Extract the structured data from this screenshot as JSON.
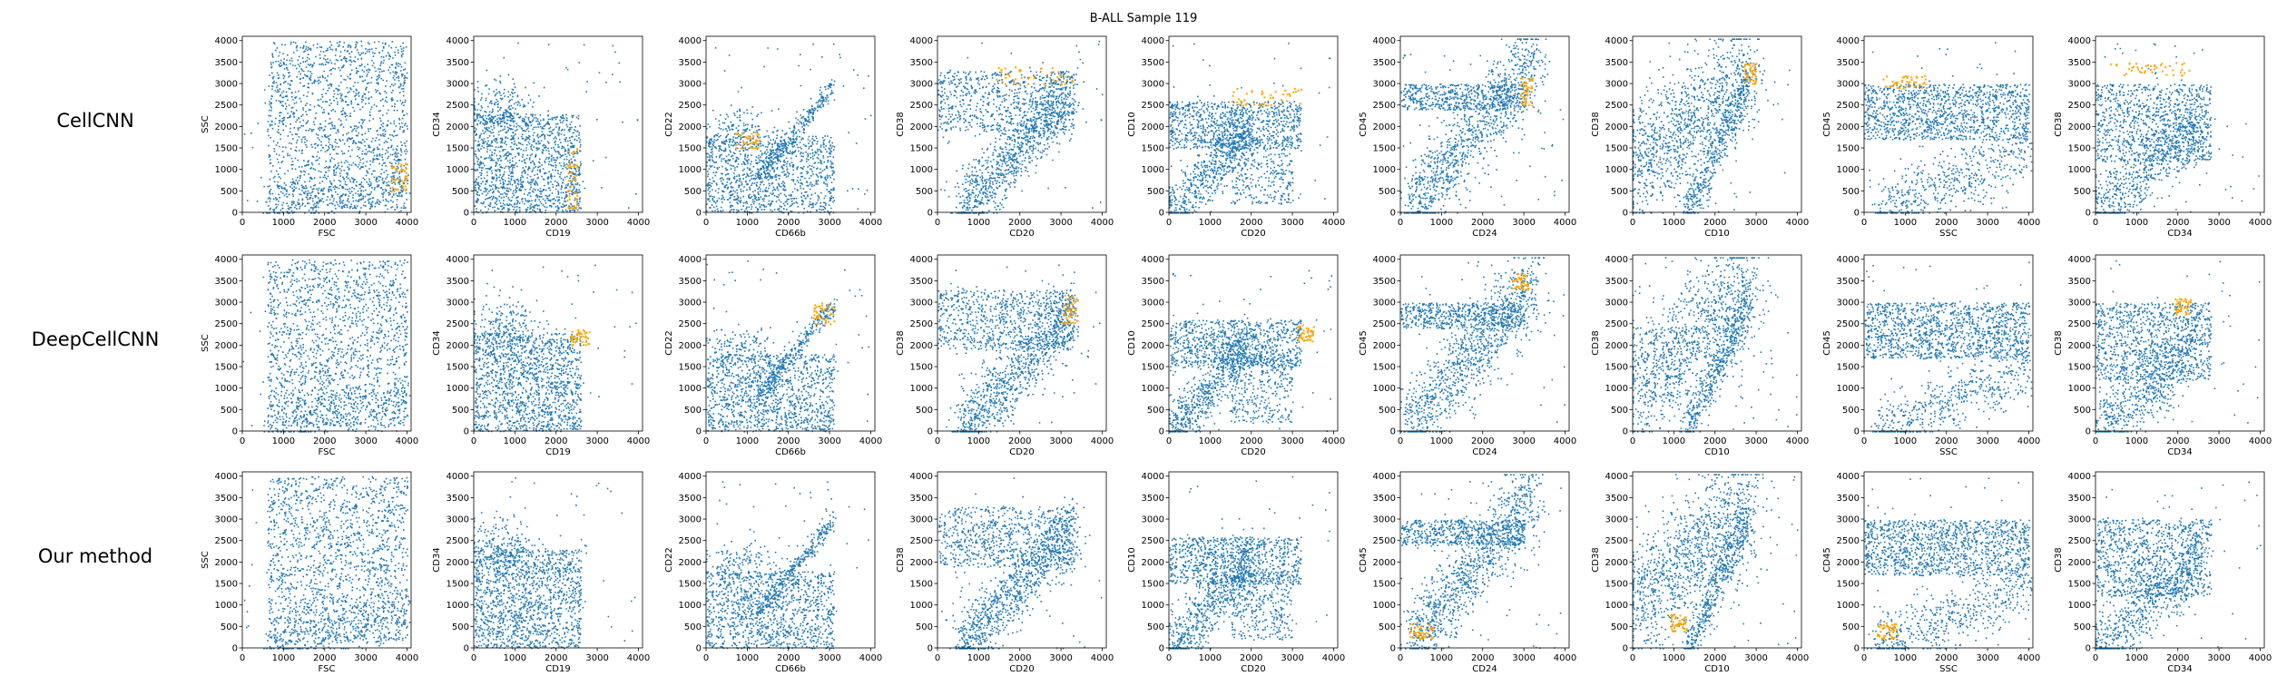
{
  "figure": {
    "title": "B-ALL Sample 119",
    "rows": [
      "CellCNN",
      "DeepCellCNN",
      "Our method"
    ]
  },
  "colors": {
    "population": "#1f77b4",
    "highlight": "#ffa500"
  },
  "chart_data": {
    "type": "scatter",
    "title": "B-ALL Sample 119",
    "grid": false,
    "rows": [
      "CellCNN",
      "DeepCellCNN",
      "Our method"
    ],
    "panels": [
      {
        "xlabel": "FSC",
        "ylabel": "SSC",
        "xlim": [
          0,
          4100
        ],
        "ylim": [
          0,
          4100
        ]
      },
      {
        "xlabel": "CD19",
        "ylabel": "CD34",
        "xlim": [
          0,
          4100
        ],
        "ylim": [
          0,
          4100
        ]
      },
      {
        "xlabel": "CD66b",
        "ylabel": "CD22",
        "xlim": [
          0,
          4100
        ],
        "ylim": [
          0,
          4100
        ]
      },
      {
        "xlabel": "CD20",
        "ylabel": "CD38",
        "xlim": [
          0,
          4100
        ],
        "ylim": [
          0,
          4100
        ]
      },
      {
        "xlabel": "CD20",
        "ylabel": "CD10",
        "xlim": [
          0,
          4100
        ],
        "ylim": [
          0,
          4100
        ]
      },
      {
        "xlabel": "CD24",
        "ylabel": "CD45",
        "xlim": [
          0,
          4100
        ],
        "ylim": [
          0,
          4100
        ]
      },
      {
        "xlabel": "CD10",
        "ylabel": "CD38",
        "xlim": [
          0,
          4100
        ],
        "ylim": [
          0,
          4100
        ]
      },
      {
        "xlabel": "SSC",
        "ylabel": "CD45",
        "xlim": [
          0,
          4100
        ],
        "ylim": [
          0,
          4100
        ]
      },
      {
        "xlabel": "CD34",
        "ylabel": "CD38",
        "xlim": [
          0,
          4100
        ],
        "ylim": [
          0,
          4100
        ]
      }
    ],
    "xticks": [
      0,
      1000,
      2000,
      3000,
      4000
    ],
    "yticks": [
      0,
      500,
      1000,
      1500,
      2000,
      2500,
      3000,
      3500,
      4000
    ],
    "highlight_clusters": [
      [
        {
          "x": [
            3600,
            4000
          ],
          "y": [
            500,
            1200
          ]
        },
        {
          "x": [
            2250,
            2500
          ],
          "y": [
            100,
            1500
          ]
        },
        {
          "x": [
            700,
            1300
          ],
          "y": [
            1500,
            1900
          ]
        },
        {
          "x": [
            1400,
            3300
          ],
          "y": [
            3000,
            3400
          ]
        },
        {
          "x": [
            1500,
            3200
          ],
          "y": [
            2500,
            2900
          ]
        },
        {
          "x": [
            2900,
            3200
          ],
          "y": [
            2500,
            3200
          ]
        },
        {
          "x": [
            2700,
            3000
          ],
          "y": [
            3000,
            3500
          ]
        },
        {
          "x": [
            400,
            1500
          ],
          "y": [
            2900,
            3200
          ]
        },
        {
          "x": [
            300,
            2300
          ],
          "y": [
            3200,
            3500
          ]
        }
      ],
      [
        null,
        {
          "x": [
            2300,
            2800
          ],
          "y": [
            2000,
            2400
          ]
        },
        {
          "x": [
            2600,
            3100
          ],
          "y": [
            2500,
            3000
          ]
        },
        {
          "x": [
            3000,
            3400
          ],
          "y": [
            2500,
            3200
          ]
        },
        {
          "x": [
            3100,
            3500
          ],
          "y": [
            2100,
            2500
          ]
        },
        {
          "x": [
            2700,
            3100
          ],
          "y": [
            3300,
            3700
          ]
        },
        null,
        null,
        {
          "x": [
            1900,
            2300
          ],
          "y": [
            2700,
            3100
          ]
        }
      ],
      [
        null,
        null,
        null,
        null,
        null,
        {
          "x": [
            200,
            800
          ],
          "y": [
            200,
            600
          ]
        },
        {
          "x": [
            900,
            1300
          ],
          "y": [
            400,
            800
          ]
        },
        {
          "x": [
            300,
            800
          ],
          "y": [
            200,
            600
          ]
        },
        null
      ]
    ]
  }
}
